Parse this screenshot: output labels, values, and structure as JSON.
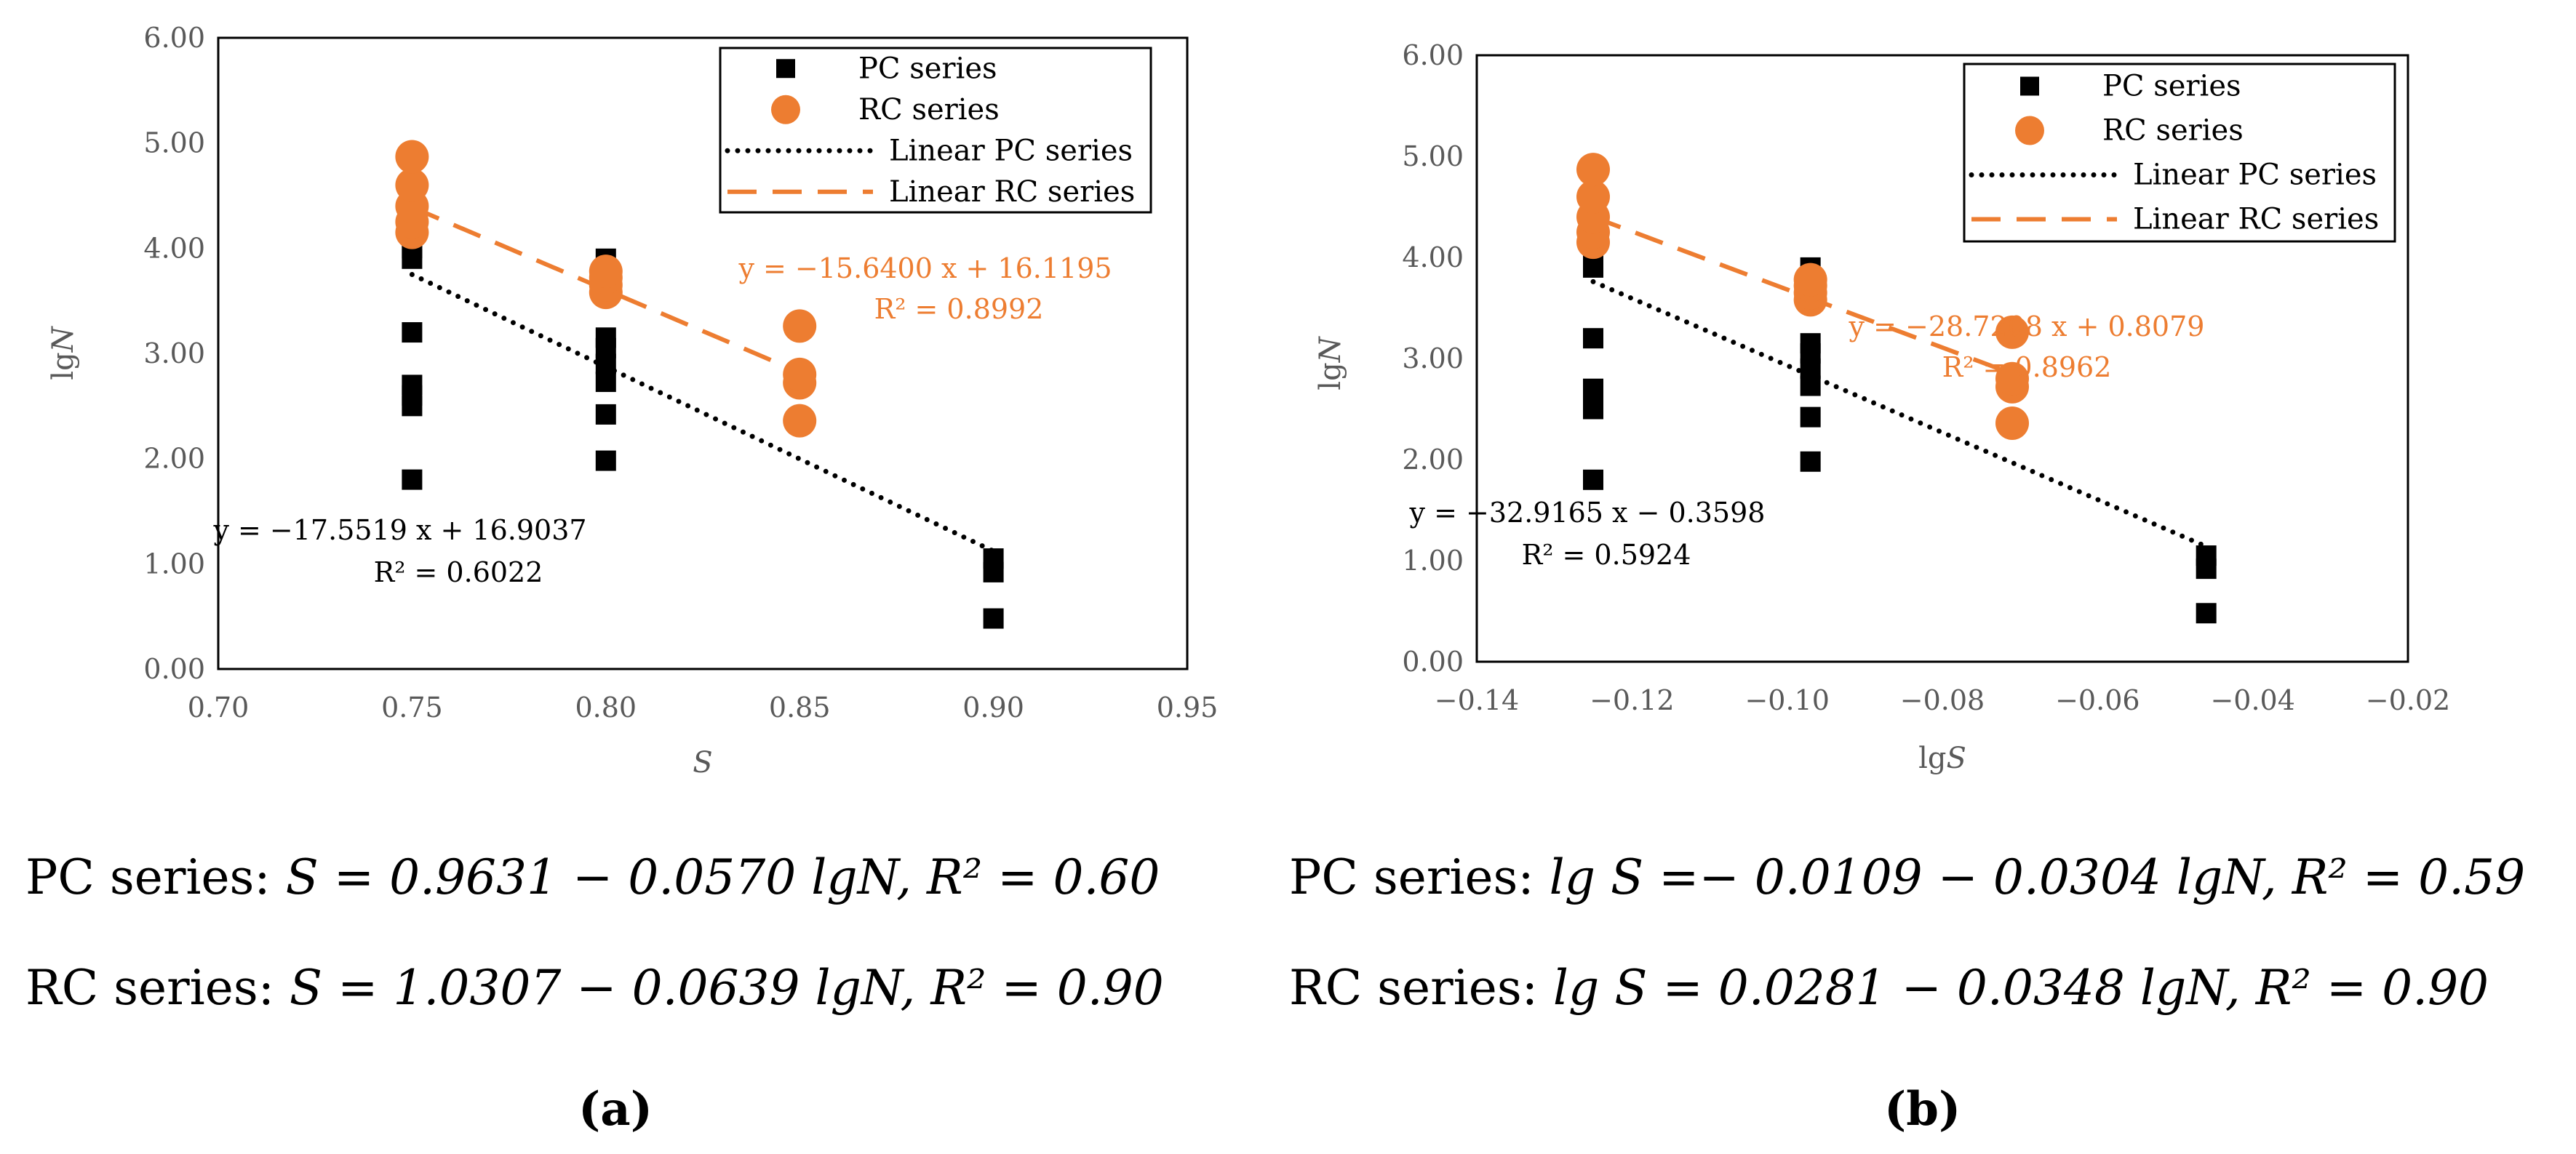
{
  "chart_data": [
    {
      "type": "scatter",
      "panel": "a",
      "xlabel": "S",
      "ylabel": "lgN",
      "xlim": [
        0.7,
        0.95
      ],
      "ylim": [
        0,
        6
      ],
      "x_ticks": [
        "0.70",
        "0.75",
        "0.80",
        "0.85",
        "0.90",
        "0.95"
      ],
      "y_ticks": [
        "0.00",
        "1.00",
        "2.00",
        "3.00",
        "4.00",
        "5.00",
        "6.00"
      ],
      "legend_position": "top-right",
      "colors": {
        "pc": "#000000",
        "rc": "#ED7D31"
      },
      "series": [
        {
          "name": "PC series",
          "marker": "square",
          "points": [
            [
              0.75,
              1.8
            ],
            [
              0.75,
              2.5
            ],
            [
              0.75,
              2.6
            ],
            [
              0.75,
              2.7
            ],
            [
              0.75,
              3.2
            ],
            [
              0.75,
              3.9
            ],
            [
              0.75,
              4.0
            ],
            [
              0.75,
              4.1
            ],
            [
              0.8,
              1.98
            ],
            [
              0.8,
              2.42
            ],
            [
              0.8,
              2.73
            ],
            [
              0.8,
              2.9
            ],
            [
              0.8,
              3.05
            ],
            [
              0.8,
              3.15
            ],
            [
              0.8,
              3.9
            ],
            [
              0.9,
              0.48
            ],
            [
              0.9,
              0.92
            ],
            [
              0.9,
              1.05
            ]
          ]
        },
        {
          "name": "RC series",
          "marker": "circle",
          "points": [
            [
              0.75,
              4.15
            ],
            [
              0.75,
              4.25
            ],
            [
              0.75,
              4.4
            ],
            [
              0.75,
              4.6
            ],
            [
              0.75,
              4.87
            ],
            [
              0.8,
              3.58
            ],
            [
              0.8,
              3.65
            ],
            [
              0.8,
              3.72
            ],
            [
              0.8,
              3.78
            ],
            [
              0.85,
              2.36
            ],
            [
              0.85,
              2.72
            ],
            [
              0.85,
              2.8
            ],
            [
              0.85,
              3.26
            ]
          ]
        }
      ],
      "trendlines": [
        {
          "name": "Linear PC series",
          "style": "dotted",
          "x": [
            0.75,
            0.9
          ],
          "y": [
            3.75,
            1.12
          ]
        },
        {
          "name": "Linear RC series",
          "style": "dashed",
          "x": [
            0.75,
            0.85
          ],
          "y": [
            4.39,
            2.82
          ]
        }
      ],
      "annotations": {
        "pc_equation": "y = −17.5519 x + 16.9037",
        "pc_r2": "R² = 0.6022",
        "rc_equation": "y = −15.6400 x + 16.1195",
        "rc_r2": "R² = 0.8992"
      }
    },
    {
      "type": "scatter",
      "panel": "b",
      "xlabel": "lgS",
      "ylabel": "lgN",
      "xlim": [
        -0.14,
        -0.02
      ],
      "ylim": [
        0,
        6
      ],
      "x_ticks": [
        "−0.14",
        "−0.12",
        "−0.10",
        "−0.08",
        "−0.06",
        "−0.04",
        "−0.02"
      ],
      "y_ticks": [
        "0.00",
        "1.00",
        "2.00",
        "3.00",
        "4.00",
        "5.00",
        "6.00"
      ],
      "legend_position": "top-right",
      "colors": {
        "pc": "#000000",
        "rc": "#ED7D31"
      },
      "series": [
        {
          "name": "PC series",
          "marker": "square",
          "points": [
            [
              -0.125,
              1.8
            ],
            [
              -0.125,
              2.5
            ],
            [
              -0.125,
              2.6
            ],
            [
              -0.125,
              2.7
            ],
            [
              -0.125,
              3.2
            ],
            [
              -0.125,
              3.9
            ],
            [
              -0.125,
              4.0
            ],
            [
              -0.125,
              4.1
            ],
            [
              -0.097,
              1.98
            ],
            [
              -0.097,
              2.42
            ],
            [
              -0.097,
              2.73
            ],
            [
              -0.097,
              2.9
            ],
            [
              -0.097,
              3.05
            ],
            [
              -0.097,
              3.15
            ],
            [
              -0.097,
              3.9
            ],
            [
              -0.046,
              0.48
            ],
            [
              -0.046,
              0.92
            ],
            [
              -0.046,
              1.05
            ]
          ]
        },
        {
          "name": "RC series",
          "marker": "circle",
          "points": [
            [
              -0.125,
              4.15
            ],
            [
              -0.125,
              4.25
            ],
            [
              -0.125,
              4.4
            ],
            [
              -0.125,
              4.6
            ],
            [
              -0.125,
              4.87
            ],
            [
              -0.097,
              3.58
            ],
            [
              -0.097,
              3.65
            ],
            [
              -0.097,
              3.72
            ],
            [
              -0.097,
              3.78
            ],
            [
              -0.071,
              2.36
            ],
            [
              -0.071,
              2.72
            ],
            [
              -0.071,
              2.8
            ],
            [
              -0.071,
              3.26
            ]
          ]
        }
      ],
      "trendlines": [
        {
          "name": "Linear PC series",
          "style": "dotted",
          "x": [
            -0.125,
            -0.046
          ],
          "y": [
            3.76,
            1.14
          ]
        },
        {
          "name": "Linear RC series",
          "style": "dashed",
          "x": [
            -0.125,
            -0.071
          ],
          "y": [
            4.4,
            2.85
          ]
        }
      ],
      "annotations": {
        "pc_equation": "y = −32.9165 x − 0.3598",
        "pc_r2": "R² = 0.5924",
        "rc_equation": "y = −28.7208 x + 0.8079",
        "rc_r2": "R² = 0.8962"
      }
    }
  ],
  "legend": {
    "pc": "PC series",
    "rc": "RC series",
    "linear_pc": "Linear PC series",
    "linear_rc": "Linear RC series"
  },
  "formulas": {
    "a": {
      "pc_prefix": "PC series:",
      "pc_formula": "S = 0.9631 − 0.0570 lgN, R² = 0.60",
      "rc_prefix": "RC series:",
      "rc_formula": "S = 1.0307 − 0.0639 lgN, R² = 0.90"
    },
    "b": {
      "pc_prefix": "PC series:",
      "pc_formula": "lg S =− 0.0109 − 0.0304 lgN, R² = 0.59",
      "rc_prefix": "RC series:",
      "rc_formula": "lg S = 0.0281 − 0.0348 lgN, R² = 0.90"
    }
  },
  "panel_labels": {
    "a": "(a)",
    "b": "(b)"
  }
}
